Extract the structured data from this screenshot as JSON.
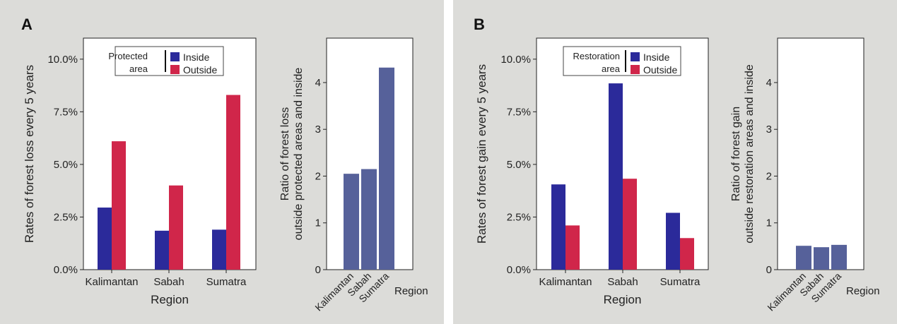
{
  "colors": {
    "panel_bg": "#dcdcd9",
    "inside": "#2b2a9a",
    "outside": "#d0264a",
    "ratio": "#56619a"
  },
  "panels": [
    {
      "letter": "A"
    },
    {
      "letter": "B"
    }
  ],
  "chart_data": [
    {
      "type": "bar",
      "panel": "A",
      "categories": [
        "Kalimantan",
        "Sabah",
        "Sumatra"
      ],
      "series": [
        {
          "name": "Inside",
          "values": [
            2.95,
            1.85,
            1.9
          ]
        },
        {
          "name": "Outside",
          "values": [
            6.1,
            4.0,
            8.3
          ]
        }
      ],
      "xlabel": "Region",
      "ylabel": "Rates of forest loss every 5 years",
      "yticks": [
        "0.0%",
        "2.5%",
        "5.0%",
        "7.5%",
        "10.0%"
      ],
      "ylim": [
        0,
        11
      ],
      "legend": {
        "title_lines": [
          "Protected",
          "area"
        ],
        "position": "top-center"
      }
    },
    {
      "type": "bar",
      "panel": "A",
      "categories": [
        "Kalimantan",
        "Sabah",
        "Sumatra"
      ],
      "values": [
        2.05,
        2.15,
        4.32
      ],
      "xlabel": "Region",
      "ylabel_lines": [
        "Ratio of forest loss",
        "outside protected areas and inside"
      ],
      "yticks": [
        "0",
        "1",
        "2",
        "3",
        "4"
      ],
      "ylim": [
        0,
        4.95
      ]
    },
    {
      "type": "bar",
      "panel": "B",
      "categories": [
        "Kalimantan",
        "Sabah",
        "Sumatra"
      ],
      "series": [
        {
          "name": "Inside",
          "values": [
            4.05,
            8.85,
            2.7
          ]
        },
        {
          "name": "Outside",
          "values": [
            2.1,
            4.32,
            1.5
          ]
        }
      ],
      "xlabel": "Region",
      "ylabel": "Rates of forest gain every 5 years",
      "yticks": [
        "0.0%",
        "2.5%",
        "5.0%",
        "7.5%",
        "10.0%"
      ],
      "ylim": [
        0,
        11
      ],
      "legend": {
        "title_lines": [
          "Restoration",
          "area"
        ],
        "position": "top-center"
      }
    },
    {
      "type": "bar",
      "panel": "B",
      "categories": [
        "Kalimantan",
        "Sabah",
        "Sumatra"
      ],
      "values": [
        0.51,
        0.48,
        0.53
      ],
      "xlabel": "Region",
      "ylabel_lines": [
        "Ratio of forest gain",
        "outside restoration areas and inside"
      ],
      "yticks": [
        "0",
        "1",
        "2",
        "3",
        "4"
      ],
      "ylim": [
        0,
        4.95
      ]
    }
  ]
}
